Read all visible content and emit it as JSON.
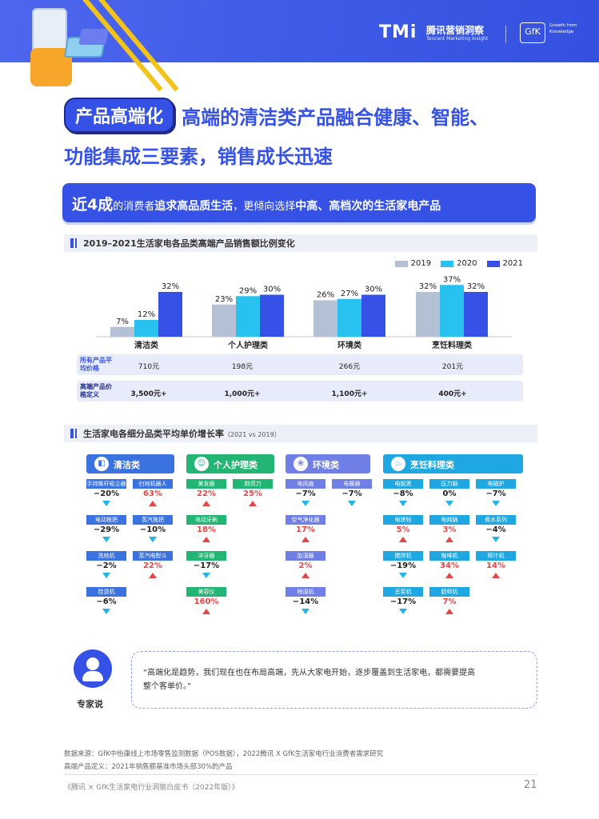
{
  "header": {
    "tmi_logo": "TMi",
    "tmi_cn": "腾讯营销洞察",
    "tmi_en": "Tencent Marketing Insight",
    "gfk_logo": "GfK",
    "gfk_tagline": "Growth from Knowledge"
  },
  "headline": {
    "tag": "产品高端化",
    "line1": "高端的清洁类产品融合健康、智能、",
    "line2": "功能集成三要素，销售成长迅速"
  },
  "banner": {
    "big": "近4成",
    "part1": "的消费者",
    "bold1": "追求高品质生活",
    "part2": "，更倾向选择",
    "bold2": "中高、高档次的生活家电产品"
  },
  "section1": {
    "title": "2019–2021生活家电各品类高端产品销售额比例变化"
  },
  "chart_data": {
    "type": "bar",
    "categories": [
      "清洁类",
      "个人护理类",
      "环境类",
      "烹饪料理类"
    ],
    "series": [
      {
        "name": "2019",
        "values": [
          7,
          23,
          26,
          32
        ],
        "labels": [
          "7%",
          "23%",
          "26%",
          "32%"
        ],
        "color": "#b4c0d3"
      },
      {
        "name": "2020",
        "values": [
          12,
          29,
          27,
          37
        ],
        "labels": [
          "12%",
          "29%",
          "27%",
          "37%"
        ],
        "color": "#29c1ef"
      },
      {
        "name": "2021",
        "values": [
          32,
          30,
          30,
          32
        ],
        "labels": [
          "32%",
          "30%",
          "30%",
          "32%"
        ],
        "color": "#3551e6"
      }
    ],
    "ylim": [
      0,
      40
    ]
  },
  "table_rows": [
    {
      "label": "所有产品平均价格",
      "values": [
        "710元",
        "198元",
        "266元",
        "201元"
      ]
    },
    {
      "label": "高端产品价格定义",
      "values": [
        "3,500元+",
        "1,000元+",
        "1,100元+",
        "400元+"
      ]
    }
  ],
  "section2": {
    "title": "生活家电各细分品类平均单价增长率",
    "subtitle": "（2021 vs 2019）"
  },
  "groups": [
    {
      "name": "清洁类",
      "color": "#3a72e0",
      "cell_color": "#3a72e0",
      "columns": [
        [
          {
            "label": "手持推杆吸尘器",
            "value": "−20%",
            "dir": "down"
          },
          {
            "label": "电动拖把",
            "value": "−29%",
            "dir": "down"
          },
          {
            "label": "洗地机",
            "value": "−2%",
            "dir": "down"
          },
          {
            "label": "挂烫机",
            "value": "−6%",
            "dir": "down"
          }
        ],
        [
          {
            "label": "扫地机器人",
            "value": "63%",
            "dir": "up"
          },
          {
            "label": "蒸汽拖把",
            "value": "−10%",
            "dir": "down"
          },
          {
            "label": "蒸汽电熨斗",
            "value": "22%",
            "dir": "up"
          }
        ]
      ]
    },
    {
      "name": "个人护理类",
      "color": "#22b573",
      "cell_color": "#22b573",
      "columns": [
        [
          {
            "label": "美发器",
            "value": "22%",
            "dir": "up"
          },
          {
            "label": "电动牙刷",
            "value": "18%",
            "dir": "up"
          },
          {
            "label": "冲牙器",
            "value": "−17%",
            "dir": "down"
          },
          {
            "label": "美容仪",
            "value": "160%",
            "dir": "up"
          }
        ],
        [
          {
            "label": "剃须刀",
            "value": "25%",
            "dir": "up"
          }
        ]
      ]
    },
    {
      "name": "环境类",
      "color": "#6f7fe6",
      "cell_color": "#6f7fe6",
      "columns": [
        [
          {
            "label": "电风扇",
            "value": "−7%",
            "dir": "down"
          },
          {
            "label": "空气净化器",
            "value": "17%",
            "dir": "up"
          },
          {
            "label": "加湿器",
            "value": "2%",
            "dir": "up"
          },
          {
            "label": "除湿机",
            "value": "−14%",
            "dir": "down"
          }
        ],
        [
          {
            "label": "电暖器",
            "value": "−7%",
            "dir": "down"
          }
        ]
      ]
    },
    {
      "name": "烹饪料理类",
      "color": "#1ea7e0",
      "cell_color": "#1ea7e0",
      "columns": [
        [
          {
            "label": "电饭煲",
            "value": "−8%",
            "dir": "down"
          },
          {
            "label": "电饼铛",
            "value": "5%",
            "dir": "up"
          },
          {
            "label": "搅拌机",
            "value": "−19%",
            "dir": "down"
          },
          {
            "label": "豆浆机",
            "value": "−17%",
            "dir": "down"
          }
        ],
        [
          {
            "label": "压力锅",
            "value": "0%",
            "dir": "down"
          },
          {
            "label": "电炖锅",
            "value": "3%",
            "dir": "up"
          },
          {
            "label": "咖啡机",
            "value": "34%",
            "dir": "up"
          },
          {
            "label": "厨师机",
            "value": "7%",
            "dir": "up"
          }
        ],
        [
          {
            "label": "电磁炉",
            "value": "−7%",
            "dir": "down"
          },
          {
            "label": "煮水系列",
            "value": "−4%",
            "dir": "down"
          },
          {
            "label": "榨汁机",
            "value": "14%",
            "dir": "up"
          }
        ]
      ]
    }
  ],
  "expert": {
    "label": "专家说",
    "quote_line1": "“高端化是趋势，我们现在也在布局高端，先从大家电开始，逐步覆盖到生活家电，都需要提高",
    "quote_line2": "整个客单价。”"
  },
  "footer": {
    "source": "数据来源：GfK中怡康线上市场零售监测数据（POS数据），2022腾讯 X GfK生活家电行业消费者需求研究",
    "definition": "高端产品定义：2021年销售额基准市场头部30%的产品",
    "book": "《腾讯 × GfK生活家电行业洞察白皮书（2022年版）》",
    "page": "21"
  },
  "colors": {
    "brand": "#3551e6",
    "up": "#e64545",
    "down": "#24b5e8"
  }
}
